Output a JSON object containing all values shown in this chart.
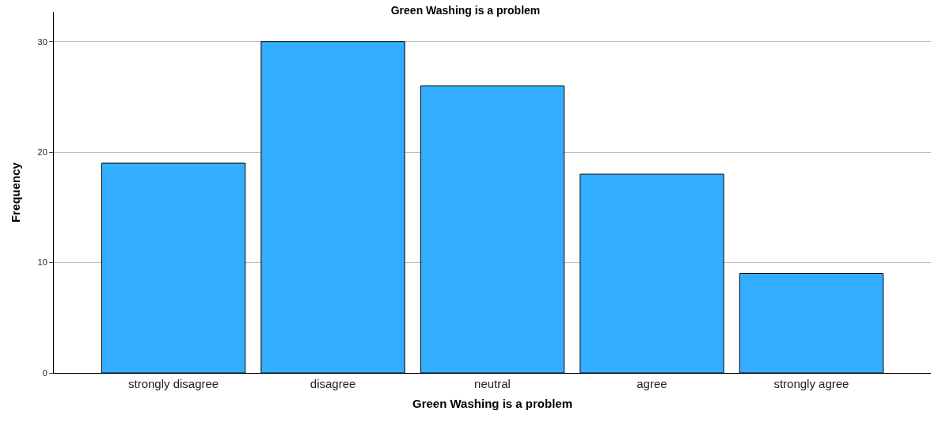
{
  "chart_data": {
    "type": "bar",
    "title": "Green Washing is a problem",
    "xlabel": "Green Washing is a problem",
    "ylabel": "Frequency",
    "categories": [
      "strongly disagree",
      "disagree",
      "neutral",
      "agree",
      "strongly agree"
    ],
    "values": [
      19,
      30,
      26,
      18,
      9
    ],
    "color": "#33adff",
    "ylim": [
      0,
      32.7
    ],
    "yticks": [
      0,
      10,
      20,
      30
    ],
    "grid": "y"
  }
}
